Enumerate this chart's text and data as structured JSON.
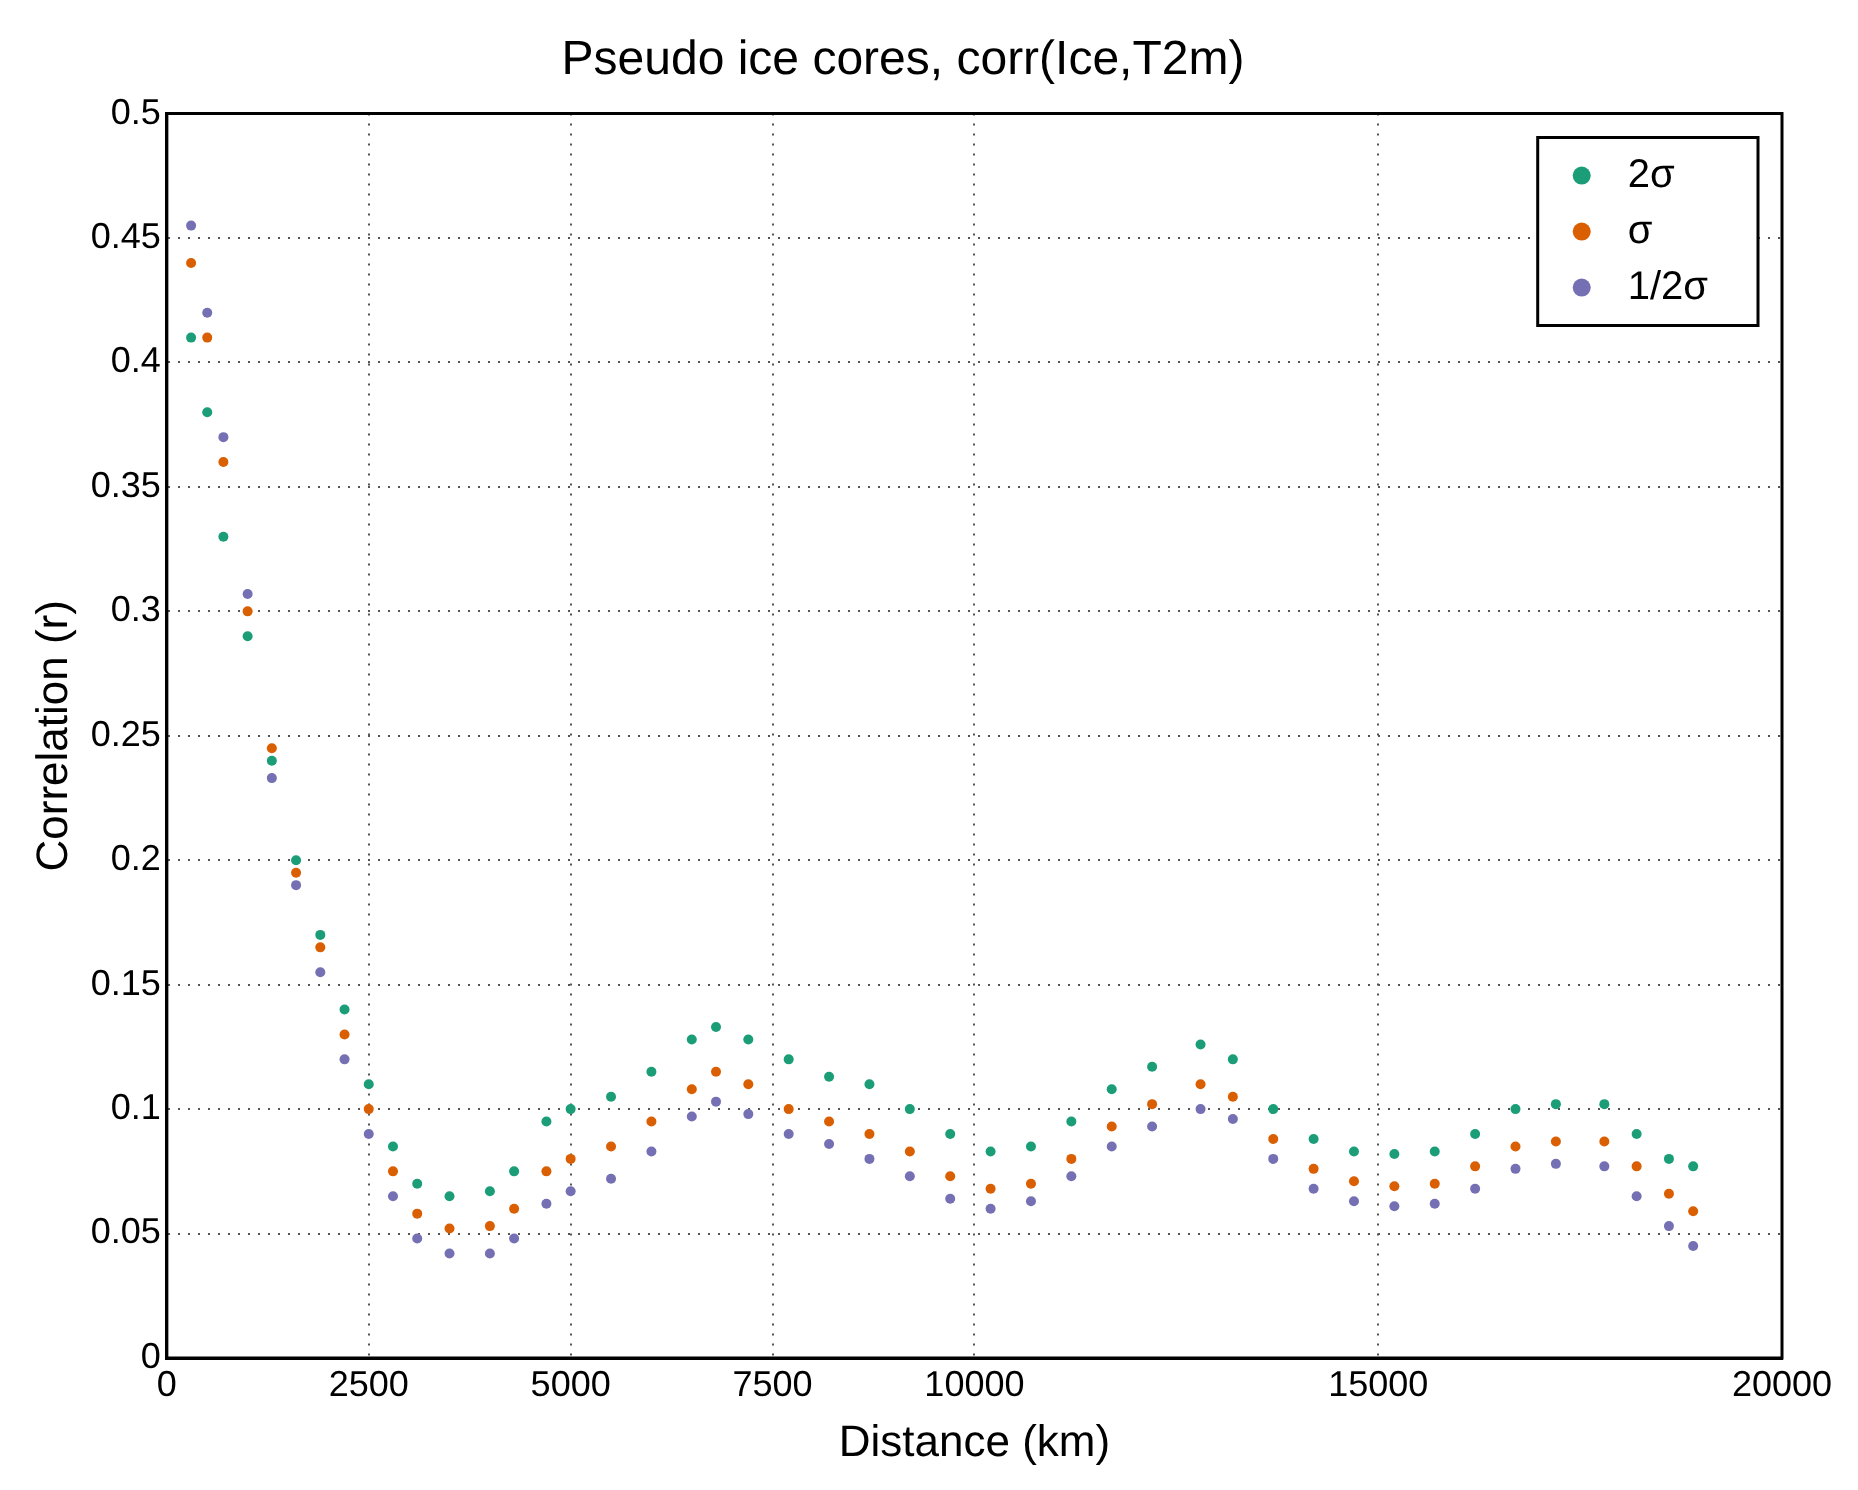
{
  "chart_data": {
    "type": "scatter",
    "title": "Pseudo ice cores, corr(Ice,T2m)",
    "xlabel": "Distance (km)",
    "ylabel": "Correlation (r)",
    "x": [
      300,
      500,
      700,
      1000,
      1300,
      1600,
      1900,
      2200,
      2500,
      2800,
      3100,
      3500,
      4000,
      4300,
      4700,
      5000,
      5500,
      6000,
      6500,
      6800,
      7200,
      7700,
      8200,
      8700,
      9200,
      9700,
      10200,
      10700,
      11200,
      11700,
      12200,
      12800,
      13200,
      13700,
      14200,
      14700,
      15200,
      15700,
      16200,
      16700,
      17200,
      17800,
      18200,
      18600,
      18900
    ],
    "series": [
      {
        "name": "2σ",
        "color": "#1b9e77",
        "values": [
          0.41,
          0.38,
          0.33,
          0.29,
          0.24,
          0.2,
          0.17,
          0.14,
          0.11,
          0.085,
          0.07,
          0.065,
          0.067,
          0.075,
          0.095,
          0.1,
          0.105,
          0.115,
          0.128,
          0.133,
          0.128,
          0.12,
          0.113,
          0.11,
          0.1,
          0.09,
          0.083,
          0.085,
          0.095,
          0.108,
          0.117,
          0.126,
          0.12,
          0.1,
          0.088,
          0.083,
          0.082,
          0.083,
          0.09,
          0.1,
          0.102,
          0.102,
          0.09,
          0.08,
          0.077
        ]
      },
      {
        "name": "σ",
        "color": "#d95f02",
        "values": [
          0.44,
          0.41,
          0.36,
          0.3,
          0.245,
          0.195,
          0.165,
          0.13,
          0.1,
          0.075,
          0.058,
          0.052,
          0.053,
          0.06,
          0.075,
          0.08,
          0.085,
          0.095,
          0.108,
          0.115,
          0.11,
          0.1,
          0.095,
          0.09,
          0.083,
          0.073,
          0.068,
          0.07,
          0.08,
          0.093,
          0.102,
          0.11,
          0.105,
          0.088,
          0.076,
          0.071,
          0.069,
          0.07,
          0.077,
          0.085,
          0.087,
          0.087,
          0.077,
          0.066,
          0.059
        ]
      },
      {
        "name": "1/2σ",
        "color": "#7570b3",
        "values": [
          0.455,
          0.42,
          0.37,
          0.307,
          0.233,
          0.19,
          0.155,
          0.12,
          0.09,
          0.065,
          0.048,
          0.042,
          0.042,
          0.048,
          0.062,
          0.067,
          0.072,
          0.083,
          0.097,
          0.103,
          0.098,
          0.09,
          0.086,
          0.08,
          0.073,
          0.064,
          0.06,
          0.063,
          0.073,
          0.085,
          0.093,
          0.1,
          0.096,
          0.08,
          0.068,
          0.063,
          0.061,
          0.062,
          0.068,
          0.076,
          0.078,
          0.077,
          0.065,
          0.053,
          0.045
        ]
      }
    ],
    "xlim": [
      0,
      20000
    ],
    "xticks": [
      0,
      2500,
      5000,
      7500,
      10000,
      15000,
      20000
    ],
    "ylim": [
      0,
      0.5
    ],
    "yticks": [
      0,
      0.05,
      0.1,
      0.15,
      0.2,
      0.25,
      0.3,
      0.35,
      0.4,
      0.45,
      0.5
    ],
    "grid": true,
    "legend": "top right",
    "marker": "circle"
  }
}
